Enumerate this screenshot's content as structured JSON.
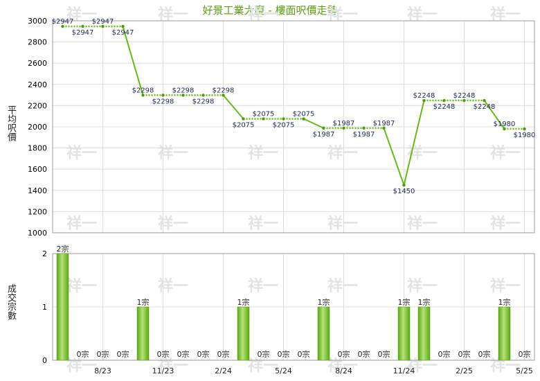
{
  "title": "好景工業大廈 - 樓面呎價走勢",
  "chart_data": [
    {
      "type": "line",
      "title": "好景工業大廈 - 樓面呎價走勢",
      "ylabel": "平均呎價",
      "ylim": [
        1000,
        3000
      ],
      "yticks": [
        1000,
        1200,
        1400,
        1600,
        1800,
        2000,
        2200,
        2400,
        2600,
        2800,
        3000
      ],
      "xtick_labels": [
        "8/23",
        "11/23",
        "2/24",
        "5/24",
        "8/24",
        "11/24",
        "2/25",
        "5/25"
      ],
      "x": [
        "6/23",
        "7/23",
        "8/23",
        "9/23",
        "10/23",
        "11/23",
        "12/23",
        "1/24",
        "2/24",
        "3/24",
        "4/24",
        "5/24",
        "6/24",
        "7/24",
        "8/24",
        "9/24",
        "10/24",
        "11/24",
        "12/24",
        "1/25",
        "2/25",
        "3/25",
        "4/25",
        "5/25"
      ],
      "values": [
        2947,
        2947,
        2947,
        2947,
        2298,
        2298,
        2298,
        2298,
        2298,
        2075,
        2075,
        2075,
        2075,
        1987,
        1987,
        1987,
        1987,
        1450,
        2248,
        2248,
        2248,
        2248,
        1980,
        1980
      ],
      "labels": [
        "$2947",
        "$2947",
        "$2947",
        "$2947",
        "$2298",
        "$2298",
        "$2298",
        "$2298",
        "$2298",
        "$2075",
        "$2075",
        "$2075",
        "$2075",
        "$1987",
        "$1987",
        "$1987",
        "$1987",
        "$1450",
        "$2248",
        "$2248",
        "$2248",
        "$2248",
        "$1980",
        "$1980"
      ],
      "line_color": "#66bb11",
      "grid": true
    },
    {
      "type": "bar",
      "ylabel": "成交宗數",
      "ylim": [
        0,
        2
      ],
      "yticks": [
        0,
        1,
        2
      ],
      "xtick_labels": [
        "8/23",
        "11/23",
        "2/24",
        "5/24",
        "8/24",
        "11/24",
        "2/25",
        "5/25"
      ],
      "values": [
        2,
        0,
        0,
        0,
        1,
        0,
        0,
        0,
        0,
        1,
        0,
        0,
        0,
        1,
        0,
        0,
        0,
        1,
        1,
        0,
        0,
        0,
        1,
        0
      ],
      "labels": [
        "2宗",
        "0宗",
        "0宗",
        "0宗",
        "1宗",
        "0宗",
        "0宗",
        "0宗",
        "0宗",
        "1宗",
        "0宗",
        "0宗",
        "0宗",
        "1宗",
        "0宗",
        "0宗",
        "0宗",
        "1宗",
        "1宗",
        "0宗",
        "0宗",
        "0宗",
        "1宗",
        "0宗"
      ],
      "bar_color": "#77c022",
      "grid": true
    }
  ],
  "watermark": "祥一"
}
